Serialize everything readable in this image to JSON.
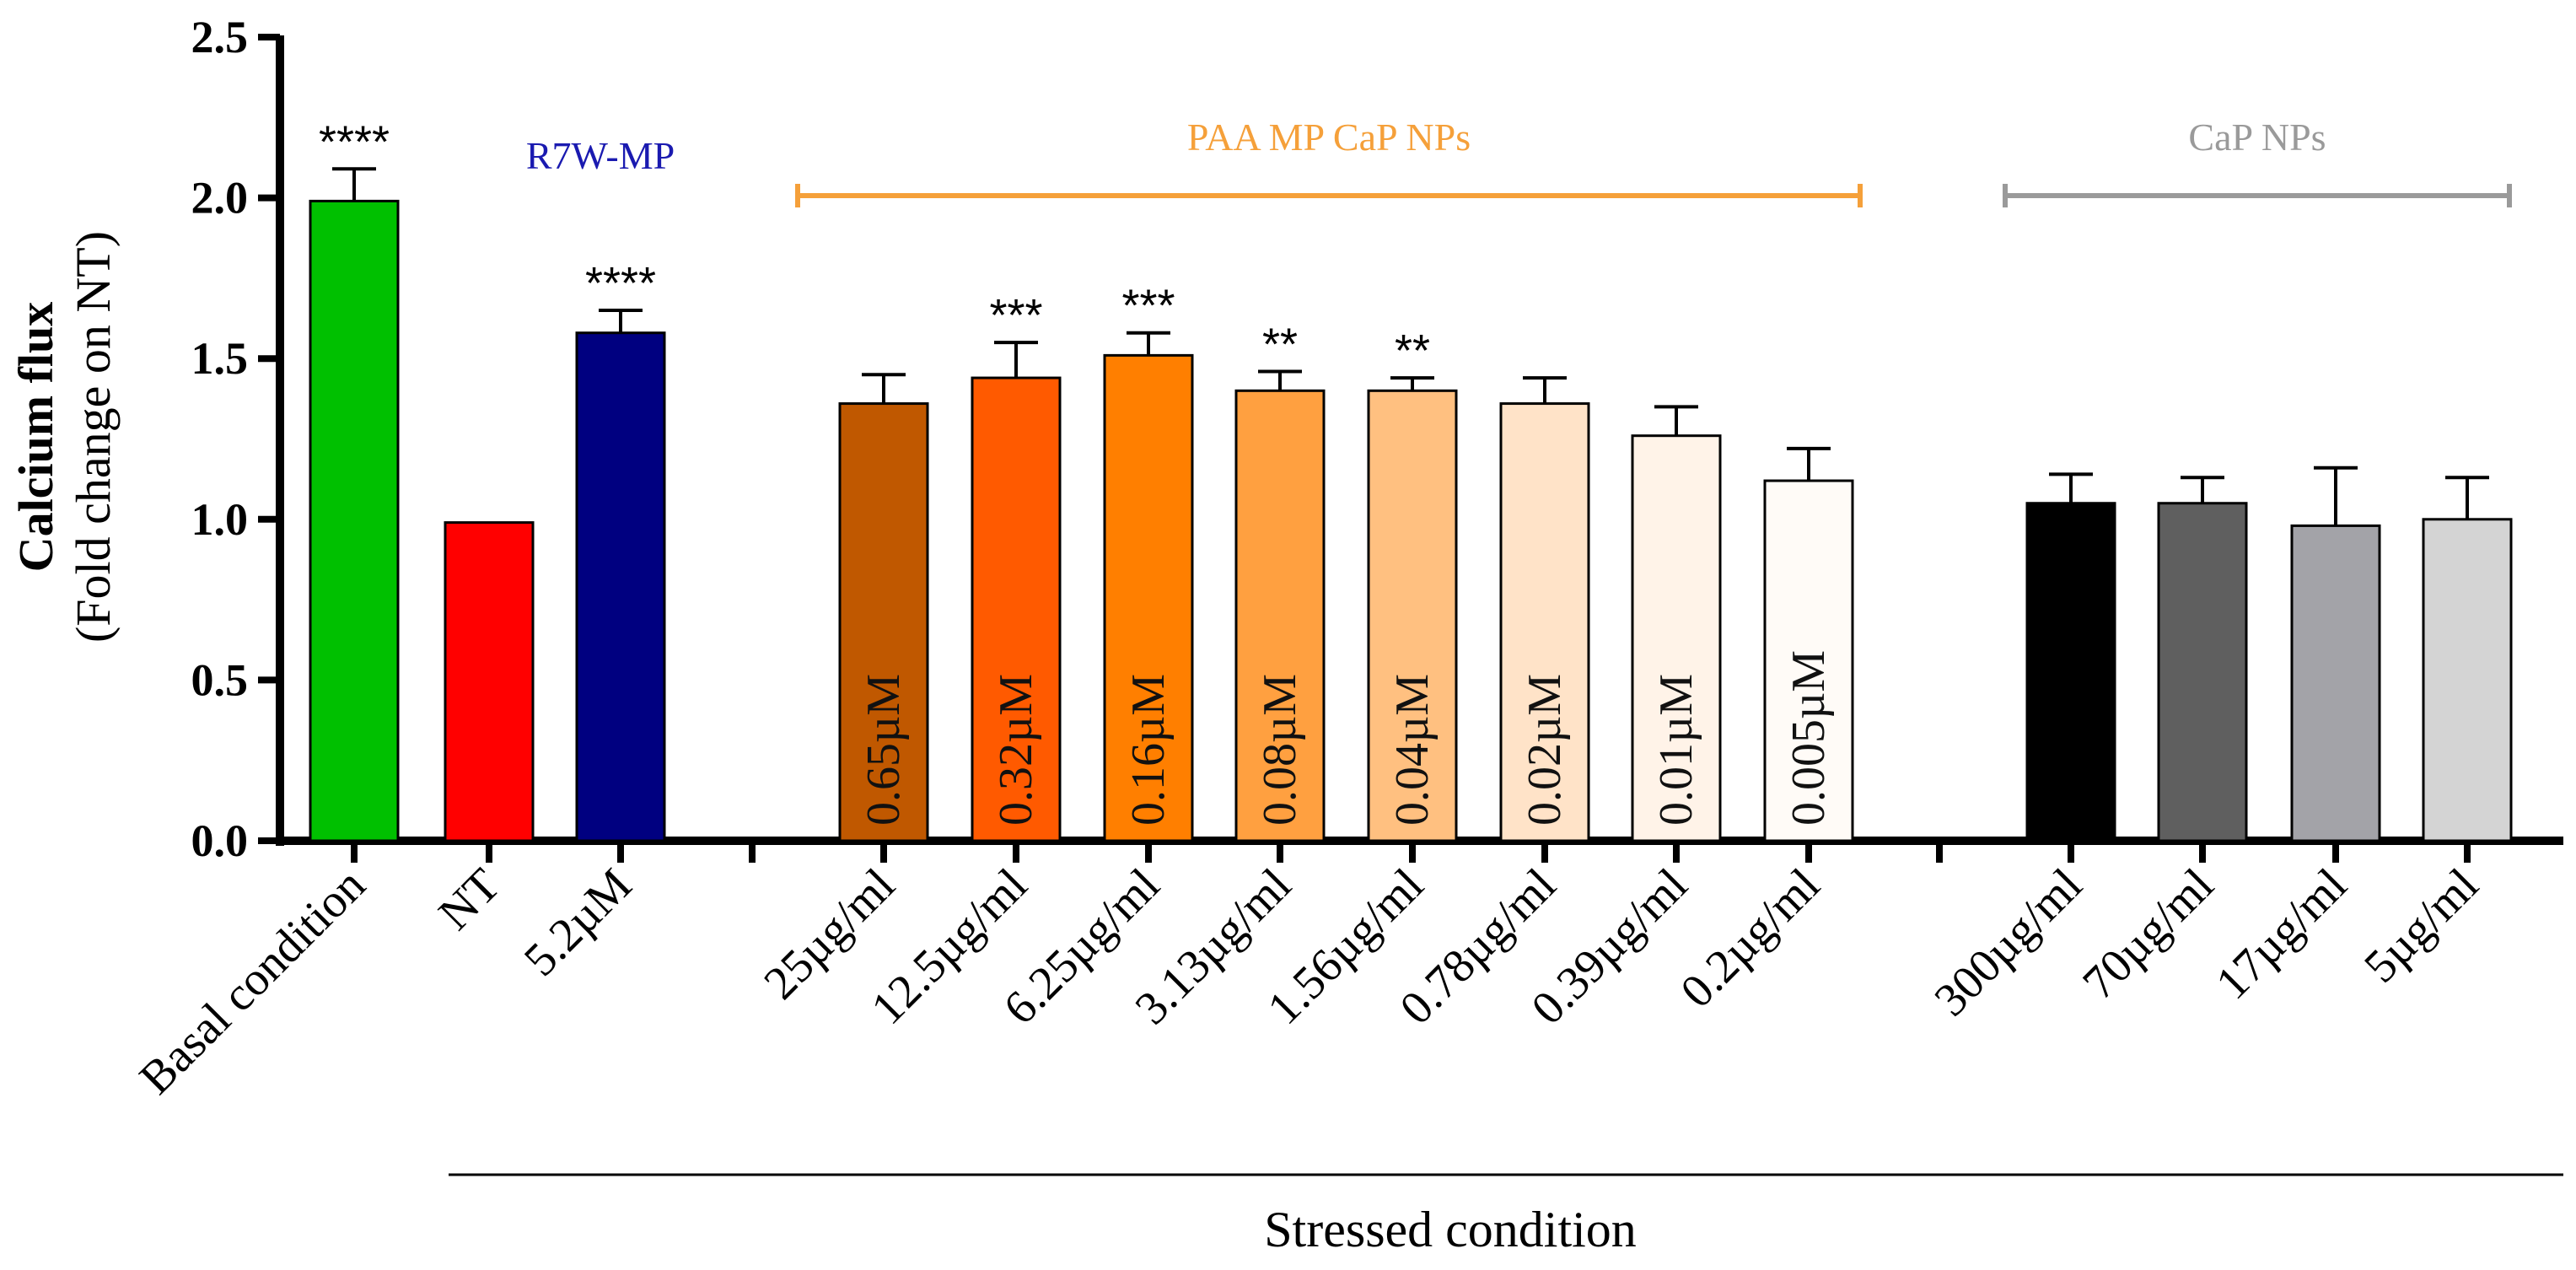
{
  "chart_data": {
    "type": "bar",
    "title": "",
    "ylabel": "Calcium flux",
    "ylabel_sub": "(Fold change on NT)",
    "xlabel": "Stressed condition",
    "ylim": [
      0,
      2.5
    ],
    "yticks": [
      "0.0",
      "0.5",
      "1.0",
      "1.5",
      "2.0",
      "2.5"
    ],
    "bars": [
      {
        "category": "Basal condition",
        "value": 1.99,
        "error": 0.1,
        "color": "#00C000",
        "sig": "****",
        "inbar": ""
      },
      {
        "category": "NT",
        "value": 0.99,
        "error": 0,
        "color": "#FF0000",
        "sig": "",
        "inbar": ""
      },
      {
        "category": "5.2µM",
        "value": 1.58,
        "error": 0.07,
        "color": "#000080",
        "sig": "****",
        "inbar": ""
      },
      {
        "category": "25µg/ml",
        "value": 1.36,
        "error": 0.09,
        "color": "#C05800",
        "sig": "",
        "inbar": "0.65µM"
      },
      {
        "category": "12.5µg/ml",
        "value": 1.44,
        "error": 0.11,
        "color": "#FF5A00",
        "sig": "***",
        "inbar": "0.32µM"
      },
      {
        "category": "6.25µg/ml",
        "value": 1.51,
        "error": 0.07,
        "color": "#FF7F00",
        "sig": "***",
        "inbar": "0.16µM"
      },
      {
        "category": "3.13µg/ml",
        "value": 1.4,
        "error": 0.06,
        "color": "#FFA040",
        "sig": "**",
        "inbar": "0.08µM"
      },
      {
        "category": "1.56µg/ml",
        "value": 1.4,
        "error": 0.04,
        "color": "#FFC080",
        "sig": "**",
        "inbar": "0.04µM"
      },
      {
        "category": "0.78µg/ml",
        "value": 1.36,
        "error": 0.08,
        "color": "#FFE3C8",
        "sig": "",
        "inbar": "0.02µM"
      },
      {
        "category": "0.39µg/ml",
        "value": 1.26,
        "error": 0.09,
        "color": "#FFF3E8",
        "sig": "",
        "inbar": "0.01µM"
      },
      {
        "category": "0.2µg/ml",
        "value": 1.12,
        "error": 0.1,
        "color": "#FFFBF7",
        "sig": "",
        "inbar": "0.005µM"
      },
      {
        "category": "300µg/ml",
        "value": 1.05,
        "error": 0.09,
        "color": "#000000",
        "sig": "",
        "inbar": ""
      },
      {
        "category": "70µg/ml",
        "value": 1.05,
        "error": 0.08,
        "color": "#5F5F5F",
        "sig": "",
        "inbar": ""
      },
      {
        "category": "17µg/ml",
        "value": 0.98,
        "error": 0.18,
        "color": "#A3A3A8",
        "sig": "",
        "inbar": ""
      },
      {
        "category": "5µg/ml",
        "value": 1.0,
        "error": 0.13,
        "color": "#D4D4D4",
        "sig": "",
        "inbar": ""
      }
    ],
    "groups": [
      {
        "label": "R7W-MP",
        "color": "#1A1AB0",
        "bracket": false
      },
      {
        "label": "PAA MP CaP NPs",
        "color": "#F5A03A",
        "bracket": true
      },
      {
        "label": "CaP NPs",
        "color": "#9A9A9A",
        "bracket": true
      }
    ]
  }
}
